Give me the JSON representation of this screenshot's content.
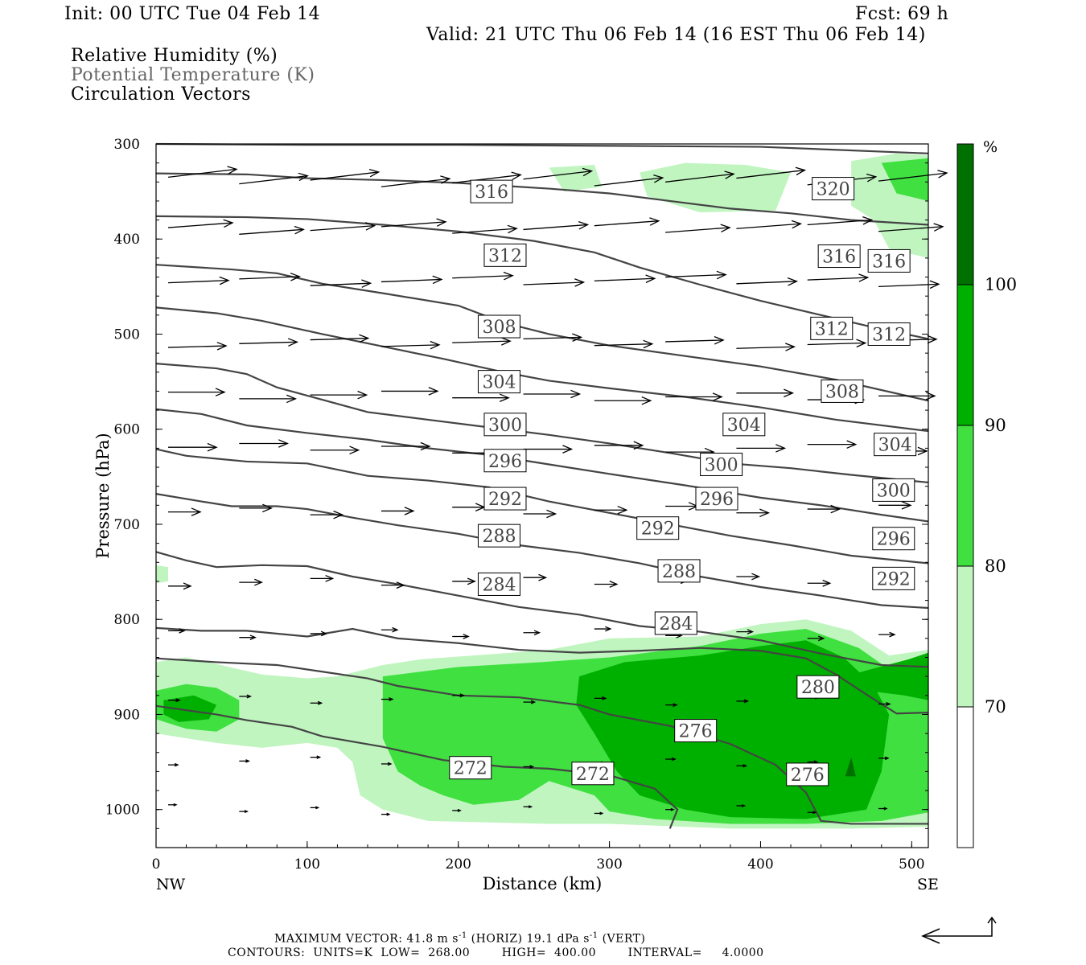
{
  "header": {
    "init": "Init: 00 UTC Tue 04 Feb 14",
    "fcst": "Fcst:   69 h",
    "valid": "Valid: 21 UTC Thu 06 Feb 14 (16 EST Thu 06 Feb 14)",
    "fields": [
      "Relative Humidity (%)",
      "Potential Temperature (K)",
      "Circulation Vectors"
    ]
  },
  "footer": {
    "line1_a": "MAXIMUM VECTOR:  41.8 m s",
    "line1_sup1": "-1",
    "line1_b": " (HORIZ)          19.1 dPa s",
    "line1_sup2": "-1",
    "line1_c": " (VERT)",
    "line2": "CONTOURS:  UNITS=K  LOW=  268.00        HIGH=  400.00        INTERVAL=     4.0000"
  },
  "chart_data": {
    "type": "cross-section",
    "xlabel": "Distance (km)",
    "ylabel": "Pressure (hPa)",
    "x_ticks": [
      0,
      100,
      200,
      300,
      400,
      500
    ],
    "y_ticks": [
      300,
      400,
      500,
      600,
      700,
      800,
      900,
      1000
    ],
    "xlim": [
      0,
      511
    ],
    "ylim": [
      300,
      1040
    ],
    "endpoints": {
      "left": "NW",
      "right": "SE"
    },
    "colorbar": {
      "unit": "%",
      "levels": [
        70,
        80,
        90,
        100
      ],
      "colors": [
        "#ffffff",
        "#c0f5c0",
        "#40e040",
        "#00b000",
        "#007000"
      ]
    },
    "theta_contours": [
      {
        "value": 320,
        "label_pos": [
          [
            448,
            347
          ]
        ],
        "points": [
          [
            0,
            300
          ],
          [
            100,
            301
          ],
          [
            200,
            301
          ],
          [
            300,
            302
          ],
          [
            400,
            303
          ],
          [
            511,
            310
          ]
        ]
      },
      {
        "value": 316,
        "label_pos": [
          [
            222,
            350
          ],
          [
            452,
            418
          ],
          [
            485,
            423
          ]
        ],
        "points": [
          [
            0,
            331
          ],
          [
            60,
            332
          ],
          [
            100,
            336
          ],
          [
            150,
            338
          ],
          [
            200,
            341
          ],
          [
            260,
            347
          ],
          [
            300,
            352
          ],
          [
            340,
            360
          ],
          [
            380,
            368
          ],
          [
            420,
            373
          ],
          [
            460,
            380
          ],
          [
            511,
            385
          ]
        ]
      },
      {
        "value": 312,
        "label_pos": [
          [
            231,
            417
          ],
          [
            447,
            494
          ],
          [
            485,
            500
          ]
        ],
        "points": [
          [
            0,
            376
          ],
          [
            60,
            377
          ],
          [
            100,
            379
          ],
          [
            150,
            385
          ],
          [
            200,
            392
          ],
          [
            250,
            402
          ],
          [
            290,
            414
          ],
          [
            320,
            430
          ],
          [
            360,
            448
          ],
          [
            400,
            465
          ],
          [
            440,
            480
          ],
          [
            475,
            493
          ],
          [
            511,
            505
          ]
        ]
      },
      {
        "value": 308,
        "label_pos": [
          [
            227,
            492
          ],
          [
            454,
            560
          ]
        ],
        "points": [
          [
            0,
            427
          ],
          [
            50,
            432
          ],
          [
            80,
            436
          ],
          [
            110,
            447
          ],
          [
            150,
            457
          ],
          [
            200,
            470
          ],
          [
            230,
            488
          ],
          [
            260,
            500
          ],
          [
            300,
            512
          ],
          [
            350,
            523
          ],
          [
            400,
            534
          ],
          [
            450,
            548
          ],
          [
            511,
            570
          ]
        ]
      },
      {
        "value": 304,
        "label_pos": [
          [
            227,
            550
          ],
          [
            389,
            595
          ],
          [
            489,
            616
          ]
        ],
        "points": [
          [
            0,
            472
          ],
          [
            40,
            478
          ],
          [
            70,
            486
          ],
          [
            110,
            500
          ],
          [
            150,
            513
          ],
          [
            190,
            526
          ],
          [
            230,
            540
          ],
          [
            260,
            549
          ],
          [
            300,
            557
          ],
          [
            350,
            566
          ],
          [
            400,
            577
          ],
          [
            450,
            590
          ],
          [
            511,
            602
          ]
        ]
      },
      {
        "value": 300,
        "label_pos": [
          [
            231,
            595
          ],
          [
            374,
            637
          ],
          [
            488,
            664
          ]
        ],
        "points": [
          [
            0,
            531
          ],
          [
            40,
            536
          ],
          [
            60,
            542
          ],
          [
            80,
            556
          ],
          [
            110,
            569
          ],
          [
            140,
            582
          ],
          [
            180,
            590
          ],
          [
            220,
            598
          ],
          [
            260,
            606
          ],
          [
            300,
            615
          ],
          [
            340,
            625
          ],
          [
            380,
            636
          ],
          [
            420,
            641
          ],
          [
            460,
            648
          ],
          [
            511,
            656
          ]
        ]
      },
      {
        "value": 296,
        "label_pos": [
          [
            231,
            633
          ],
          [
            371,
            673
          ],
          [
            488,
            715
          ]
        ],
        "points": [
          [
            0,
            579
          ],
          [
            30,
            584
          ],
          [
            60,
            596
          ],
          [
            100,
            604
          ],
          [
            140,
            611
          ],
          [
            180,
            620
          ],
          [
            220,
            627
          ],
          [
            260,
            637
          ],
          [
            300,
            647
          ],
          [
            350,
            659
          ],
          [
            400,
            672
          ],
          [
            440,
            680
          ],
          [
            480,
            690
          ],
          [
            511,
            697
          ]
        ]
      },
      {
        "value": 292,
        "label_pos": [
          [
            231,
            673
          ],
          [
            332,
            704
          ],
          [
            488,
            757
          ]
        ],
        "points": [
          [
            0,
            621
          ],
          [
            20,
            628
          ],
          [
            40,
            631
          ],
          [
            60,
            634
          ],
          [
            100,
            636
          ],
          [
            140,
            649
          ],
          [
            180,
            654
          ],
          [
            220,
            661
          ],
          [
            260,
            676
          ],
          [
            300,
            688
          ],
          [
            340,
            700
          ],
          [
            380,
            712
          ],
          [
            420,
            722
          ],
          [
            460,
            733
          ],
          [
            511,
            741
          ]
        ]
      },
      {
        "value": 288,
        "label_pos": [
          [
            227,
            712
          ],
          [
            346,
            749
          ]
        ],
        "points": [
          [
            0,
            668
          ],
          [
            30,
            676
          ],
          [
            50,
            681
          ],
          [
            80,
            681
          ],
          [
            100,
            684
          ],
          [
            130,
            693
          ],
          [
            160,
            701
          ],
          [
            200,
            710
          ],
          [
            240,
            722
          ],
          [
            280,
            730
          ],
          [
            320,
            741
          ],
          [
            360,
            755
          ],
          [
            400,
            766
          ],
          [
            440,
            775
          ],
          [
            480,
            785
          ],
          [
            511,
            788
          ]
        ]
      },
      {
        "value": 284,
        "label_pos": [
          [
            227,
            763
          ],
          [
            344,
            804
          ]
        ],
        "points": [
          [
            0,
            729
          ],
          [
            20,
            738
          ],
          [
            40,
            745
          ],
          [
            70,
            743
          ],
          [
            100,
            744
          ],
          [
            130,
            755
          ],
          [
            160,
            763
          ],
          [
            200,
            775
          ],
          [
            240,
            787
          ],
          [
            280,
            795
          ],
          [
            320,
            807
          ],
          [
            360,
            813
          ],
          [
            400,
            822
          ],
          [
            440,
            836
          ],
          [
            480,
            848
          ],
          [
            511,
            850
          ]
        ]
      },
      {
        "value": 280,
        "label_pos": [
          [
            438,
            871
          ]
        ],
        "points": [
          [
            0,
            809
          ],
          [
            30,
            812
          ],
          [
            60,
            812
          ],
          [
            100,
            818
          ],
          [
            130,
            810
          ],
          [
            160,
            820
          ],
          [
            200,
            825
          ],
          [
            240,
            832
          ],
          [
            280,
            835
          ],
          [
            320,
            833
          ],
          [
            360,
            830
          ],
          [
            400,
            833
          ],
          [
            430,
            841
          ],
          [
            450,
            858
          ],
          [
            470,
            879
          ],
          [
            490,
            899
          ],
          [
            511,
            898
          ]
        ]
      },
      {
        "value": 276,
        "label_pos": [
          [
            357,
            917
          ],
          [
            431,
            963
          ]
        ],
        "points": [
          [
            0,
            841
          ],
          [
            40,
            845
          ],
          [
            80,
            848
          ],
          [
            110,
            855
          ],
          [
            140,
            862
          ],
          [
            160,
            870
          ],
          [
            200,
            880
          ],
          [
            240,
            882
          ],
          [
            280,
            890
          ],
          [
            300,
            900
          ],
          [
            340,
            912
          ],
          [
            380,
            931
          ],
          [
            410,
            953
          ],
          [
            430,
            982
          ],
          [
            440,
            1012
          ],
          [
            460,
            1015
          ],
          [
            511,
            1015
          ]
        ]
      },
      {
        "value": 272,
        "label_pos": [
          [
            208,
            956
          ],
          [
            289,
            962
          ]
        ],
        "points": [
          [
            0,
            891
          ],
          [
            40,
            900
          ],
          [
            60,
            906
          ],
          [
            90,
            913
          ],
          [
            110,
            923
          ],
          [
            150,
            934
          ],
          [
            190,
            948
          ],
          [
            230,
            955
          ],
          [
            260,
            957
          ],
          [
            300,
            964
          ],
          [
            330,
            978
          ],
          [
            345,
            1000
          ],
          [
            340,
            1020
          ]
        ]
      }
    ],
    "max_vector": {
      "horiz_m_s": 41.8,
      "vert_dPa_s": 19.1
    },
    "contours": {
      "units": "K",
      "low": 268.0,
      "high": 400.0,
      "interval": 4.0
    }
  }
}
